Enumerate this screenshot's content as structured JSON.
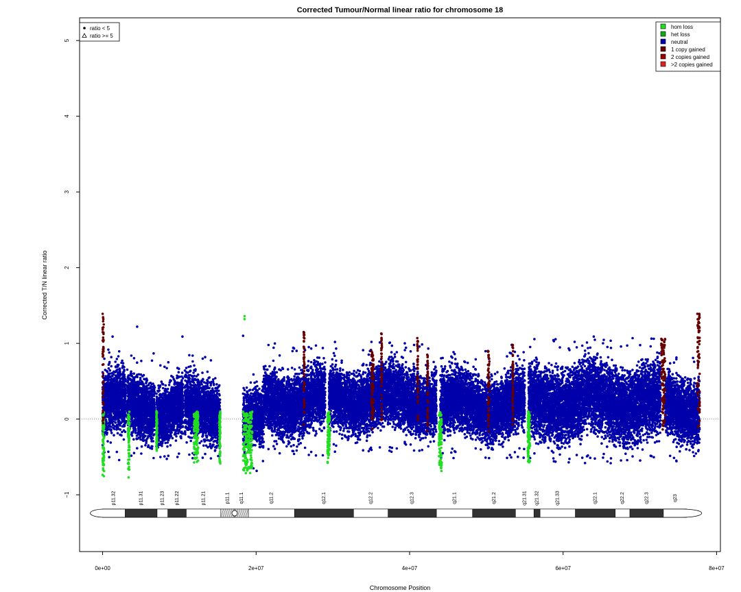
{
  "chart_data": {
    "type": "scatter",
    "title": "Corrected Tumour/Normal linear ratio for chromosome  18",
    "xlabel": "Chromosome Position",
    "ylabel": "Corrected T/N linear ratio",
    "xlim": [
      -3000000,
      80500000
    ],
    "ylim": [
      -1.75,
      5.3
    ],
    "x_ticks": [
      0,
      20000000,
      40000000,
      60000000,
      80000000
    ],
    "x_tick_labels": [
      "0e+00",
      "2e+07",
      "4e+07",
      "6e+07",
      "8e+07"
    ],
    "y_ticks": [
      -1,
      0,
      1,
      2,
      3,
      4,
      5
    ],
    "y_tick_labels": [
      "−1",
      "0",
      "1",
      "2",
      "3",
      "4",
      "5"
    ],
    "reference_line_y": 0,
    "shape_legend": {
      "placement": "top-left",
      "entries": [
        {
          "label": "ratio < 5",
          "shape": "filled-circle"
        },
        {
          "label": "ratio >= 5",
          "shape": "open-triangle"
        }
      ]
    },
    "color_legend": {
      "placement": "top-right",
      "entries": [
        {
          "label": "hom loss",
          "color": "#22dd22"
        },
        {
          "label": "het loss",
          "color": "#11aa11"
        },
        {
          "label": "neutral",
          "color": "#0000aa"
        },
        {
          "label": "1 copy gained",
          "color": "#660000"
        },
        {
          "label": "2 copies gained",
          "color": "#990000"
        },
        {
          "label": ">2 copies gained",
          "color": "#dd2222"
        }
      ]
    },
    "series": [
      {
        "name": "neutral",
        "color": "#0000aa",
        "segments": [
          {
            "x": [
              0,
              3000000
            ],
            "upper": 0.78,
            "lower": -0.42
          },
          {
            "x": [
              3200000,
              6800000
            ],
            "upper": 0.72,
            "lower": -0.38
          },
          {
            "x": [
              7000000,
              10500000
            ],
            "upper": 0.62,
            "lower": -0.42
          },
          {
            "x": [
              10700000,
              15300000
            ],
            "upper": 0.68,
            "lower": -0.45
          },
          {
            "x": [
              18300000,
              21000000
            ],
            "upper": 0.45,
            "lower": -0.55
          },
          {
            "x": [
              21000000,
              29000000
            ],
            "upper": 0.82,
            "lower": -0.35
          },
          {
            "x": [
              29500000,
              43500000
            ],
            "upper": 0.85,
            "lower": -0.3
          },
          {
            "x": [
              44000000,
              55000000
            ],
            "upper": 0.75,
            "lower": -0.38
          },
          {
            "x": [
              55500000,
              72700000
            ],
            "upper": 0.9,
            "lower": -0.45
          },
          {
            "x": [
              73300000,
              77800000
            ],
            "upper": 0.72,
            "lower": -0.42
          }
        ],
        "outliers": [
          {
            "x": 4500000,
            "y": 1.22
          },
          {
            "x": 1300000,
            "y": 1.09
          },
          {
            "x": 10400000,
            "y": 1.09
          },
          {
            "x": 18300000,
            "y": 1.1
          },
          {
            "x": 64000000,
            "y": 1.09
          },
          {
            "x": 53300000,
            "y": 0.98
          },
          {
            "x": 61500000,
            "y": 1.02
          }
        ]
      },
      {
        "name": "hom loss",
        "color": "#22dd22",
        "segments": [
          {
            "x": [
              0,
              200000
            ],
            "lower": -0.78
          },
          {
            "x": [
              3300000,
              3500000
            ],
            "lower": -0.78
          },
          {
            "x": [
              7000000,
              7100000
            ],
            "lower": -0.45
          },
          {
            "x": [
              11900000,
              12500000
            ],
            "lower": -0.6
          },
          {
            "x": [
              15200000,
              15350000
            ],
            "lower": -0.62
          },
          {
            "x": [
              18300000,
              19500000
            ],
            "lower": -0.72
          },
          {
            "x": [
              29300000,
              29600000
            ],
            "lower": -0.6
          },
          {
            "x": [
              43800000,
              44200000
            ],
            "lower": -0.7
          },
          {
            "x": [
              55400000,
              55700000
            ],
            "lower": -0.62
          }
        ],
        "outliers": [
          {
            "x": 18500000,
            "y": 1.36
          },
          {
            "x": 18500000,
            "y": 1.32
          }
        ]
      },
      {
        "name": "1 copy gained",
        "color": "#660000",
        "segments": [
          {
            "x": [
              0,
              150000
            ],
            "upper": 1.39
          },
          {
            "x": [
              26200000,
              26300000
            ],
            "upper": 1.15
          },
          {
            "x": [
              35000000,
              35300000
            ],
            "upper": 0.9
          },
          {
            "x": [
              36300000,
              36400000
            ],
            "upper": 1.13
          },
          {
            "x": [
              41000000,
              41100000
            ],
            "upper": 1.07
          },
          {
            "x": [
              42300000,
              42400000
            ],
            "upper": 0.85
          },
          {
            "x": [
              50200000,
              50400000
            ],
            "upper": 0.9
          },
          {
            "x": [
              53400000,
              53500000
            ],
            "upper": 0.98
          },
          {
            "x": [
              72800000,
              73300000
            ],
            "upper": 1.06
          },
          {
            "x": [
              77500000,
              77800000
            ],
            "upper": 1.39
          }
        ]
      }
    ],
    "ideogram": {
      "bands": [
        {
          "name": "p11.32",
          "start": 0,
          "end": 2900000,
          "stain": "gneg"
        },
        {
          "name": "p11.31",
          "start": 2900000,
          "end": 7100000,
          "stain": "gpos"
        },
        {
          "name": "p11.23",
          "start": 7100000,
          "end": 8500000,
          "stain": "gneg"
        },
        {
          "name": "p11.22",
          "start": 8500000,
          "end": 10900000,
          "stain": "gpos"
        },
        {
          "name": "p11.21",
          "start": 10900000,
          "end": 15400000,
          "stain": "gneg"
        },
        {
          "name": "p11.1",
          "start": 15400000,
          "end": 17200000,
          "stain": "acen"
        },
        {
          "name": "q11.1",
          "start": 17200000,
          "end": 19000000,
          "stain": "stalk"
        },
        {
          "name": "q11.2",
          "start": 19000000,
          "end": 25000000,
          "stain": "gneg"
        },
        {
          "name": "q12.1",
          "start": 25000000,
          "end": 32700000,
          "stain": "gpos"
        },
        {
          "name": "q12.2",
          "start": 32700000,
          "end": 37200000,
          "stain": "gneg"
        },
        {
          "name": "q12.3",
          "start": 37200000,
          "end": 43500000,
          "stain": "gpos"
        },
        {
          "name": "q21.1",
          "start": 43500000,
          "end": 48200000,
          "stain": "gneg"
        },
        {
          "name": "q21.2",
          "start": 48200000,
          "end": 53800000,
          "stain": "gpos"
        },
        {
          "name": "q21.31",
          "start": 53800000,
          "end": 56200000,
          "stain": "gneg"
        },
        {
          "name": "q21.32",
          "start": 56200000,
          "end": 57000000,
          "stain": "gpos"
        },
        {
          "name": "q21.33",
          "start": 57000000,
          "end": 61600000,
          "stain": "gneg"
        },
        {
          "name": "q22.1",
          "start": 61600000,
          "end": 66800000,
          "stain": "gpos"
        },
        {
          "name": "q22.2",
          "start": 66800000,
          "end": 68700000,
          "stain": "gneg"
        },
        {
          "name": "q22.3",
          "start": 68700000,
          "end": 73100000,
          "stain": "gpos"
        },
        {
          "name": "q23",
          "start": 73100000,
          "end": 76100000,
          "stain": "gneg"
        }
      ]
    }
  }
}
